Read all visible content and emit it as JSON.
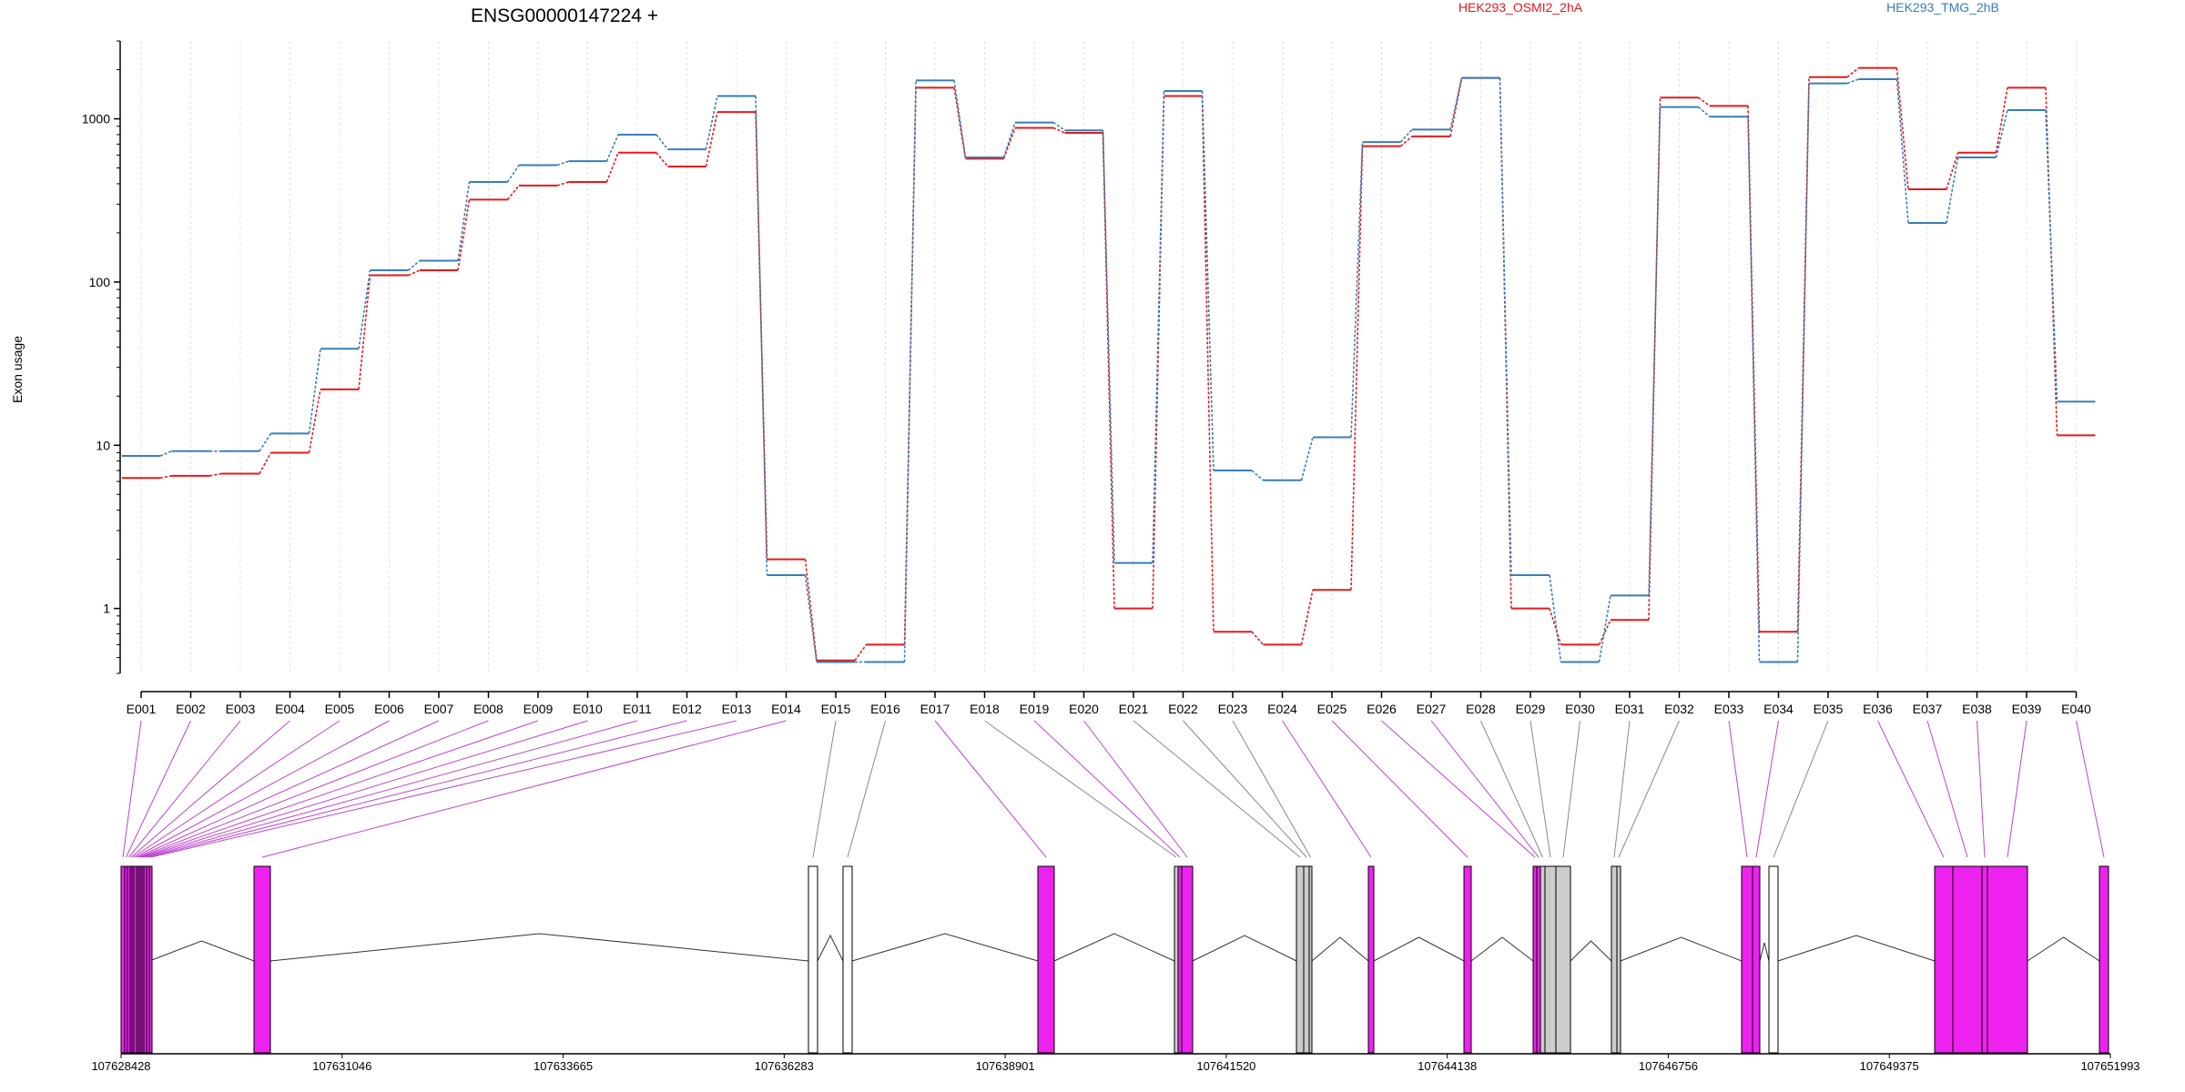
{
  "chart_data": {
    "type": "line",
    "title": "ENSG00000147224 +",
    "ylabel": "Exon usage",
    "xlabel": "",
    "yscale": "log",
    "ylim": [
      0.4,
      3000
    ],
    "yticks": [
      1,
      10,
      100,
      1000
    ],
    "ytick_labels": [
      "1",
      "10",
      "100",
      "1000"
    ],
    "grid": "vertical dotted",
    "legend_placement": "top",
    "exons": [
      "E001",
      "E002",
      "E003",
      "E004",
      "E005",
      "E006",
      "E007",
      "E008",
      "E009",
      "E010",
      "E011",
      "E012",
      "E013",
      "E014",
      "E015",
      "E016",
      "E017",
      "E018",
      "E019",
      "E020",
      "E021",
      "E022",
      "E023",
      "E024",
      "E025",
      "E026",
      "E027",
      "E028",
      "E029",
      "E030",
      "E031",
      "E032",
      "E033",
      "E034",
      "E035",
      "E036",
      "E037",
      "E038",
      "E039",
      "E040"
    ],
    "series": [
      {
        "name": "HEK293_OSMI2_2hA",
        "color": "#e41a1c",
        "values": [
          6.3,
          6.5,
          6.7,
          9,
          22,
          110,
          118,
          320,
          390,
          410,
          620,
          510,
          1100,
          2,
          0.48,
          0.6,
          1550,
          570,
          880,
          820,
          1,
          1380,
          0.72,
          0.6,
          1.3,
          680,
          780,
          1780,
          1,
          0.6,
          0.85,
          1350,
          1200,
          0.72,
          1800,
          2050,
          370,
          620,
          1550,
          11.5
        ]
      },
      {
        "name": "HEK293_TMG_2hB",
        "color": "#377eb8",
        "values": [
          8.6,
          9.2,
          9.2,
          11.8,
          39,
          118,
          135,
          410,
          520,
          550,
          800,
          650,
          1380,
          1.6,
          0.47,
          0.47,
          1720,
          580,
          950,
          850,
          1.9,
          1480,
          7,
          6.1,
          11.2,
          720,
          860,
          1780,
          1.6,
          0.47,
          1.2,
          1180,
          1030,
          0.47,
          1650,
          1750,
          230,
          580,
          1130,
          18.5
        ]
      }
    ]
  },
  "gene_model": {
    "coordinate_labels": [
      "107628428",
      "107631046",
      "107633665",
      "107636283",
      "107638901",
      "107641520",
      "107644138",
      "107646756",
      "107649375",
      "107651993"
    ],
    "exon_colors": {
      "significant": "#ee22ee",
      "not_significant": "#cccccc",
      "excluded": "#ffffff"
    },
    "exon_status": [
      "sig",
      "sig",
      "sig",
      "sig",
      "sig",
      "sig",
      "sig",
      "sig",
      "sig",
      "sig",
      "sig",
      "sig",
      "sig",
      "sig",
      "white",
      "white",
      "sig",
      "gray",
      "sig",
      "sig",
      "gray",
      "gray",
      "gray",
      "sig",
      "sig",
      "sig",
      "sig",
      "gray",
      "gray",
      "gray",
      "gray",
      "gray",
      "sig",
      "sig",
      "white",
      "sig",
      "sig",
      "sig",
      "sig",
      "sig"
    ]
  }
}
